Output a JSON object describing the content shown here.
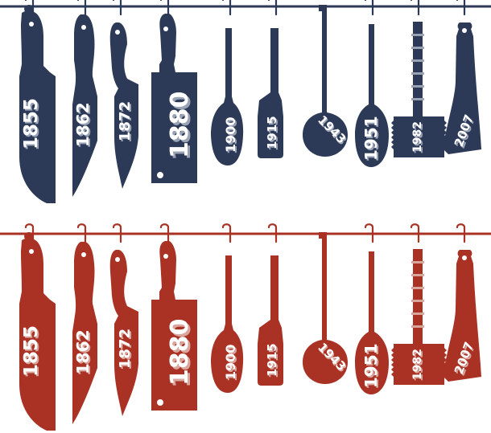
{
  "rows": [
    {
      "name": "navy-row",
      "color": "#2c3a57",
      "shadow": "#9aa3b5",
      "items": [
        {
          "year": "1855",
          "tool": "chef-knife"
        },
        {
          "year": "1862",
          "tool": "carving-knife"
        },
        {
          "year": "1872",
          "tool": "boning-knife"
        },
        {
          "year": "1880",
          "tool": "cleaver"
        },
        {
          "year": "1900",
          "tool": "spoon"
        },
        {
          "year": "1915",
          "tool": "spatula"
        },
        {
          "year": "1943",
          "tool": "round-spoon"
        },
        {
          "year": "1951",
          "tool": "oval-spoon"
        },
        {
          "year": "1982",
          "tool": "meat-mallet"
        },
        {
          "year": "2007",
          "tool": "angled-spatula"
        }
      ]
    },
    {
      "name": "red-row",
      "color": "#a93224",
      "shadow": "#d9a59d",
      "items": [
        {
          "year": "1855",
          "tool": "chef-knife"
        },
        {
          "year": "1862",
          "tool": "carving-knife"
        },
        {
          "year": "1872",
          "tool": "boning-knife"
        },
        {
          "year": "1880",
          "tool": "cleaver"
        },
        {
          "year": "1900",
          "tool": "spoon"
        },
        {
          "year": "1915",
          "tool": "spatula"
        },
        {
          "year": "1943",
          "tool": "round-spoon"
        },
        {
          "year": "1951",
          "tool": "oval-spoon"
        },
        {
          "year": "1982",
          "tool": "meat-mallet"
        },
        {
          "year": "2007",
          "tool": "angled-spatula"
        }
      ]
    }
  ]
}
